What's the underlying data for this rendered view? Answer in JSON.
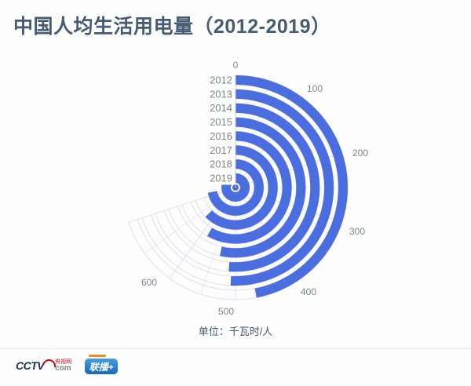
{
  "title": "中国人均生活用电量（2012-2019）",
  "unit_label": "单位：千瓦时/人",
  "chart_data": {
    "type": "bar",
    "coordinate": "polar",
    "title": "中国人均生活用电量（2012-2019）",
    "series_name": "人均生活用电量",
    "unit": "千瓦时/人",
    "categories": [
      "2012",
      "2013",
      "2014",
      "2015",
      "2016",
      "2017",
      "2018",
      "2019"
    ],
    "values": [
      470,
      508,
      513,
      536,
      584,
      627,
      720,
      915
    ],
    "angle_ticks": [
      "0",
      "100",
      "200",
      "300",
      "400",
      "500",
      "600"
    ],
    "angle_tick_values": [
      0,
      100,
      200,
      300,
      400,
      500,
      600
    ],
    "angle_axis": {
      "start": "top",
      "direction": "clockwise",
      "units_per_revolution": 1000,
      "grid_span_max": 700,
      "grid": true
    },
    "legend_position": "none",
    "bar_color": "#4a6edf"
  },
  "colors": {
    "background": "#fdfdfd",
    "title": "#475b73",
    "bar": "#4a6edf",
    "grid": "#dfe0eb",
    "grid_minor": "#e9eaf2",
    "axis_line": "#cfd2dc",
    "tick_label": "#82858c",
    "unit_text": "#44586e",
    "divider": "#e9e9e9",
    "cctv_navy": "#1a2a5c",
    "cctv_red": "#d6000f",
    "lianbo_blue": "#1e82d2",
    "lianbo_orange": "#f08a1e"
  },
  "footer": {
    "cctv_word": "CCTV",
    "cctv_site": "央视网",
    "cctv_com": "com",
    "lianbo_badge": "联播+"
  }
}
